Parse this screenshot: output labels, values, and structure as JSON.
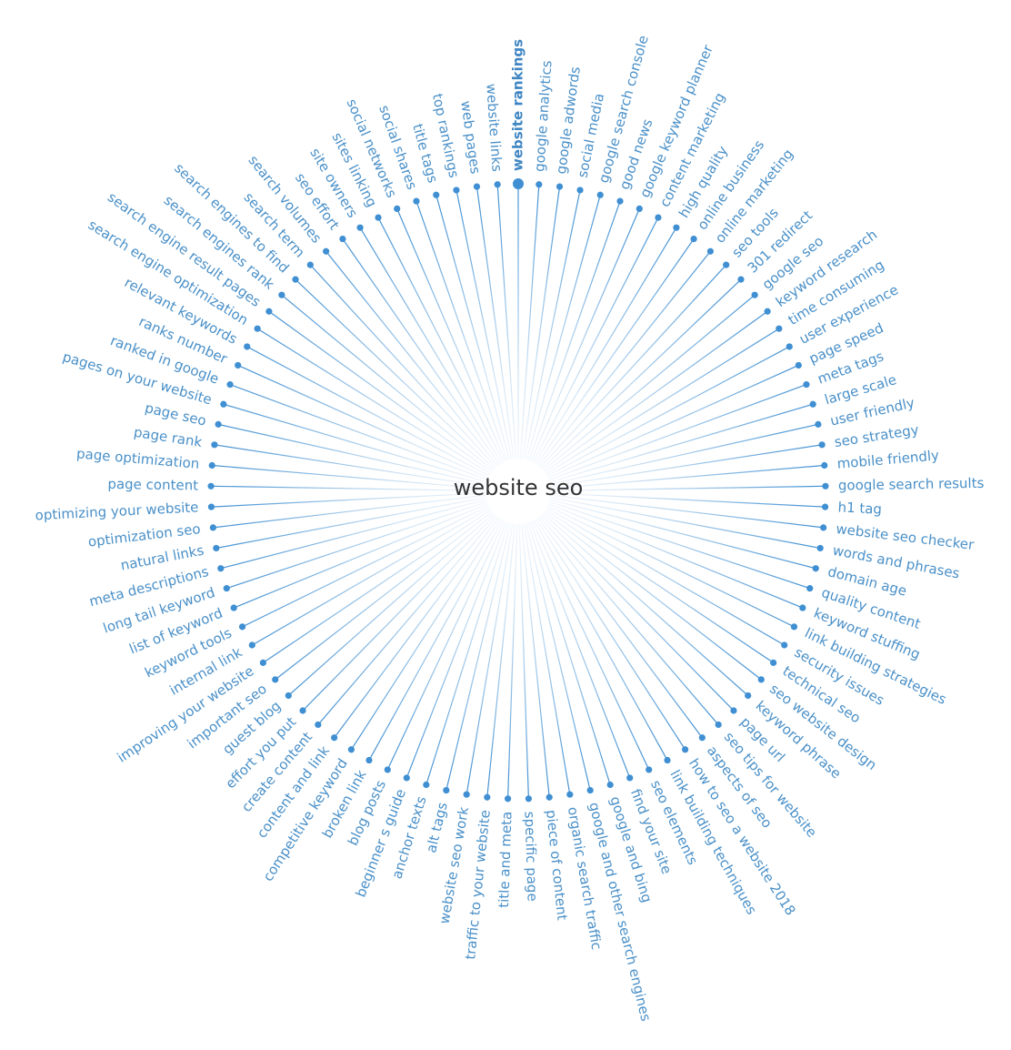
{
  "center": {
    "label": "website seo"
  },
  "highlighted_keyword": "website rankings",
  "keywords": [
    "website rankings",
    "google analytics",
    "google adwords",
    "social media",
    "google search console",
    "good news",
    "google keyword planner",
    "content marketing",
    "high quality",
    "online business",
    "online marketing",
    "seo tools",
    "301 redirect",
    "google seo",
    "keyword research",
    "time consuming",
    "user experience",
    "page speed",
    "meta tags",
    "large scale",
    "user friendly",
    "seo strategy",
    "mobile friendly",
    "google search results",
    "h1 tag",
    "website seo checker",
    "words and phrases",
    "domain age",
    "quality content",
    "keyword stuffing",
    "link building strategies",
    "security issues",
    "technical seo",
    "seo website design",
    "keyword phrase",
    "page url",
    "seo tips for website",
    "aspects of seo",
    "how to seo a website 2018",
    "link building techniques",
    "seo elements",
    "find your site",
    "google and bing",
    "google and other search engines",
    "organic search traffic",
    "piece of content",
    "specific page",
    "title and meta",
    "traffic to your website",
    "website seo work",
    "alt tags",
    "anchor texts",
    "beginner s guide",
    "blog posts",
    "broken link",
    "competitive keyword",
    "content and link",
    "create content",
    "effort you put",
    "guest blog",
    "important seo",
    "improving your website",
    "internal link",
    "keyword tools",
    "list of keyword",
    "long tail keyword",
    "meta descriptions",
    "natural links",
    "optimization seo",
    "optimizing your website",
    "page content",
    "page optimization",
    "page rank",
    "page seo",
    "pages on your website",
    "ranked in google",
    "ranks number",
    "relevant keywords",
    "search engine optimization",
    "search engine result pages",
    "search engines rank",
    "search engines to find",
    "search term",
    "search volumes",
    "seo effort",
    "site owners",
    "sites linking",
    "social networks",
    "social shares",
    "title tags",
    "top rankings",
    "web pages",
    "website links"
  ],
  "colors": {
    "accent": "#3f8fd2",
    "label": "#4a90c8",
    "center_text": "#333333"
  }
}
